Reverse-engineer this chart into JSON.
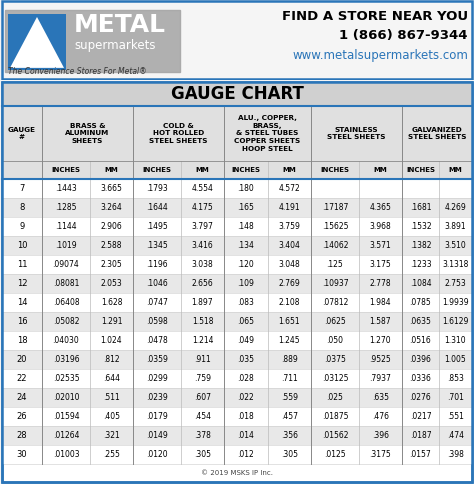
{
  "title": "GAUGE CHART",
  "rows": [
    [
      "7",
      ".1443",
      "3.665",
      ".1793",
      "4.554",
      ".180",
      "4.572",
      "",
      "",
      "",
      ""
    ],
    [
      "8",
      ".1285",
      "3.264",
      ".1644",
      "4.175",
      ".165",
      "4.191",
      ".17187",
      "4.365",
      ".1681",
      "4.269"
    ],
    [
      "9",
      ".1144",
      "2.906",
      ".1495",
      "3.797",
      ".148",
      "3.759",
      ".15625",
      "3.968",
      ".1532",
      "3.891"
    ],
    [
      "10",
      ".1019",
      "2.588",
      ".1345",
      "3.416",
      ".134",
      "3.404",
      ".14062",
      "3.571",
      ".1382",
      "3.510"
    ],
    [
      "11",
      ".09074",
      "2.305",
      ".1196",
      "3.038",
      ".120",
      "3.048",
      ".125",
      "3.175",
      ".1233",
      "3.1318"
    ],
    [
      "12",
      ".08081",
      "2.053",
      ".1046",
      "2.656",
      ".109",
      "2.769",
      ".10937",
      "2.778",
      ".1084",
      "2.753"
    ],
    [
      "14",
      ".06408",
      "1.628",
      ".0747",
      "1.897",
      ".083",
      "2.108",
      ".07812",
      "1.984",
      ".0785",
      "1.9939"
    ],
    [
      "16",
      ".05082",
      "1.291",
      ".0598",
      "1.518",
      ".065",
      "1.651",
      ".0625",
      "1.587",
      ".0635",
      "1.6129"
    ],
    [
      "18",
      ".04030",
      "1.024",
      ".0478",
      "1.214",
      ".049",
      "1.245",
      ".050",
      "1.270",
      ".0516",
      "1.310"
    ],
    [
      "20",
      ".03196",
      ".812",
      ".0359",
      ".911",
      ".035",
      ".889",
      ".0375",
      ".9525",
      ".0396",
      "1.005"
    ],
    [
      "22",
      ".02535",
      ".644",
      ".0299",
      ".759",
      ".028",
      ".711",
      ".03125",
      ".7937",
      ".0336",
      ".853"
    ],
    [
      "24",
      ".02010",
      ".511",
      ".0239",
      ".607",
      ".022",
      ".559",
      ".025",
      ".635",
      ".0276",
      ".701"
    ],
    [
      "26",
      ".01594",
      ".405",
      ".0179",
      ".454",
      ".018",
      ".457",
      ".01875",
      ".476",
      ".0217",
      ".551"
    ],
    [
      "28",
      ".01264",
      ".321",
      ".0149",
      ".378",
      ".014",
      ".356",
      ".01562",
      ".396",
      ".0187",
      ".474"
    ],
    [
      "30",
      ".01003",
      ".255",
      ".0120",
      ".305",
      ".012",
      ".305",
      ".0125",
      ".3175",
      ".0157",
      ".398"
    ]
  ],
  "bg_color": "#f5f5f5",
  "table_bg": "#ffffff",
  "title_bg": "#d8d8d8",
  "header_bg": "#e8e8e8",
  "alt_row_bg": "#e8e8e8",
  "border_color": "#2a75b8",
  "text_color": "#000000",
  "footer": "© 2019 MSKS IP Inc.",
  "top_right_line1": "FIND A STORE NEAR YOU",
  "top_right_line2": "1 (866) 867-9344",
  "top_right_line3": "www.metalsupermarkets.com",
  "top_left_tagline": "The Convenience Stores For Metal®",
  "logo_metal": "METAL",
  "logo_sub": "supermarkets",
  "logo_box_bg": "#808080",
  "logo_tri_bg": "#2a75b8",
  "logo_tri_fill": "#ffffff"
}
